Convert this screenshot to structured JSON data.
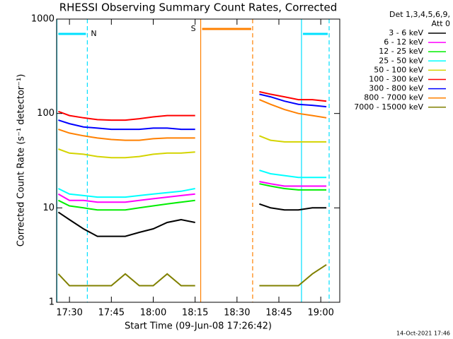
{
  "chart_data": {
    "type": "line",
    "title": "RHESSI Observing Summary Count Rates, Corrected",
    "x_label": "Start Time (09-Jun-08 17:26:42)",
    "y_label": "Corrected Count Rate (s⁻¹ detector⁻¹)",
    "legend_title": [
      "Det 1,3,4,5,6,9,",
      "Att 0"
    ],
    "footer": "14-Oct-2021 17:46",
    "log_y": true,
    "xlim": [
      1045.4,
      1146.8
    ],
    "ylim": [
      1,
      1000
    ],
    "xticks": [
      {
        "value": 1050,
        "label": "17:30"
      },
      {
        "value": 1065,
        "label": "17:45"
      },
      {
        "value": 1080,
        "label": "18:00"
      },
      {
        "value": 1095,
        "label": "18:15"
      },
      {
        "value": 1110,
        "label": "18:30"
      },
      {
        "value": 1125,
        "label": "18:45"
      },
      {
        "value": 1140,
        "label": "19:00"
      }
    ],
    "yticks": [
      1,
      10,
      100,
      1000
    ],
    "x": [
      1046,
      1050,
      1055,
      1060,
      1065,
      1070,
      1075,
      1080,
      1085,
      1090,
      1095,
      1106,
      1118,
      1122,
      1127,
      1132,
      1137,
      1142
    ],
    "series": [
      {
        "name": "3 - 6 keV",
        "color": "#000000",
        "values": [
          9,
          7.5,
          6,
          5,
          5,
          5,
          5.5,
          6,
          7,
          7.5,
          7,
          null,
          11,
          10,
          9.5,
          9.5,
          10,
          10
        ]
      },
      {
        "name": "6 - 12 keV",
        "color": "#ff00ff",
        "values": [
          14,
          12,
          12,
          11.5,
          11.5,
          11.5,
          12,
          12.5,
          13,
          13.5,
          14,
          null,
          19,
          18,
          17,
          17,
          17,
          17
        ]
      },
      {
        "name": "12 - 25 keV",
        "color": "#00ee00",
        "values": [
          12,
          10.5,
          10,
          9.5,
          9.5,
          9.5,
          10,
          10.5,
          11,
          11.5,
          12,
          null,
          18,
          17,
          16,
          15.5,
          15.5,
          15.5
        ]
      },
      {
        "name": "25 - 50 keV",
        "color": "#00ffff",
        "values": [
          16,
          14,
          13.5,
          13,
          13,
          13,
          13.5,
          14,
          14.5,
          15,
          16,
          null,
          25,
          23,
          22,
          21,
          21,
          21
        ]
      },
      {
        "name": "50 - 100 keV",
        "color": "#d4d400",
        "values": [
          42,
          38,
          37,
          35,
          34,
          34,
          35,
          37,
          38,
          38,
          39,
          null,
          58,
          52,
          50,
          50,
          50,
          50
        ]
      },
      {
        "name": "100 - 300 keV",
        "color": "#ff0000",
        "values": [
          105,
          95,
          90,
          86,
          85,
          85,
          88,
          92,
          95,
          95,
          95,
          null,
          170,
          160,
          150,
          140,
          140,
          135
        ]
      },
      {
        "name": "300 - 800 keV",
        "color": "#0000ff",
        "values": [
          85,
          78,
          72,
          70,
          68,
          68,
          68,
          70,
          70,
          68,
          68,
          null,
          160,
          150,
          135,
          125,
          122,
          118
        ]
      },
      {
        "name": "800 - 7000 keV",
        "color": "#ff8000",
        "values": [
          68,
          62,
          58,
          55,
          53,
          52,
          52,
          54,
          55,
          55,
          55,
          null,
          140,
          125,
          110,
          100,
          95,
          90
        ]
      },
      {
        "name": "7000 - 15000 keV",
        "color": "#808000",
        "values": [
          2,
          1.5,
          1.5,
          1.5,
          1.5,
          2,
          1.5,
          1.5,
          2,
          1.5,
          1.5,
          null,
          1.5,
          1.5,
          1.5,
          1.5,
          2,
          2.5
        ]
      }
    ],
    "intervals": [
      {
        "label": "N",
        "color": "#00e0ff",
        "kind": "night",
        "start": 1045.5,
        "end": 1056.4
      },
      {
        "label": "S",
        "color": "#ff8000",
        "kind": "saa",
        "start": 1097,
        "end": 1115.6
      },
      {
        "label": null,
        "color": "#00e0ff",
        "kind": "night",
        "start": 1133.1,
        "end": 1143
      }
    ]
  }
}
